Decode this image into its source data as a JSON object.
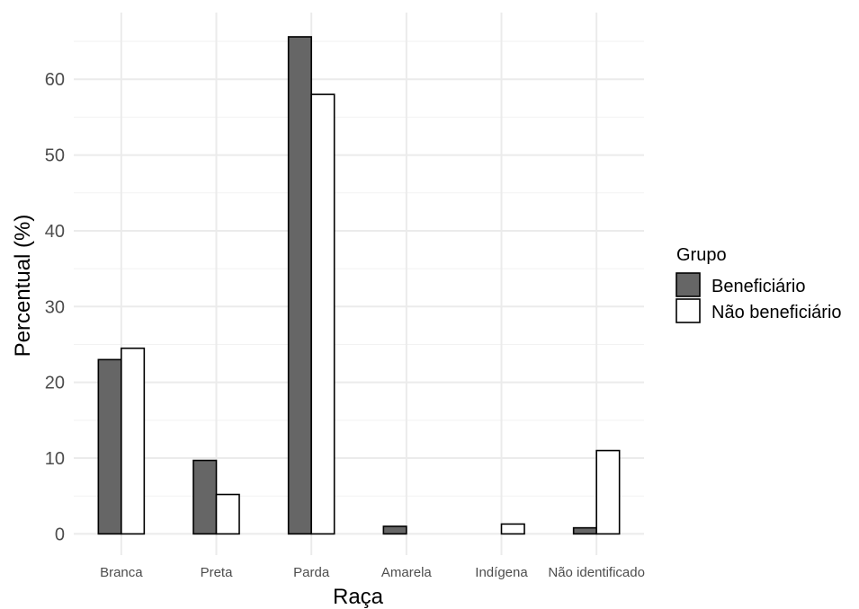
{
  "chart_data": {
    "type": "bar",
    "categories": [
      "Branca",
      "Preta",
      "Parda",
      "Amarela",
      "Indígena",
      "Não identificado"
    ],
    "series": [
      {
        "name": "Beneficiário",
        "color": "#666666",
        "values": [
          23.0,
          9.7,
          65.6,
          1.0,
          0.0,
          0.8
        ]
      },
      {
        "name": "Não beneficiário",
        "color": "#ffffff",
        "values": [
          24.5,
          5.2,
          58.0,
          0.0,
          1.3,
          11.0
        ]
      }
    ],
    "title": "",
    "xlabel": "Raça",
    "ylabel": "Percentual (%)",
    "ylim": [
      -2.8,
      68.8
    ],
    "yticks": [
      0,
      10,
      20,
      30,
      40,
      50,
      60
    ],
    "grid": true,
    "legend": {
      "title": "Grupo",
      "position": "right"
    }
  }
}
